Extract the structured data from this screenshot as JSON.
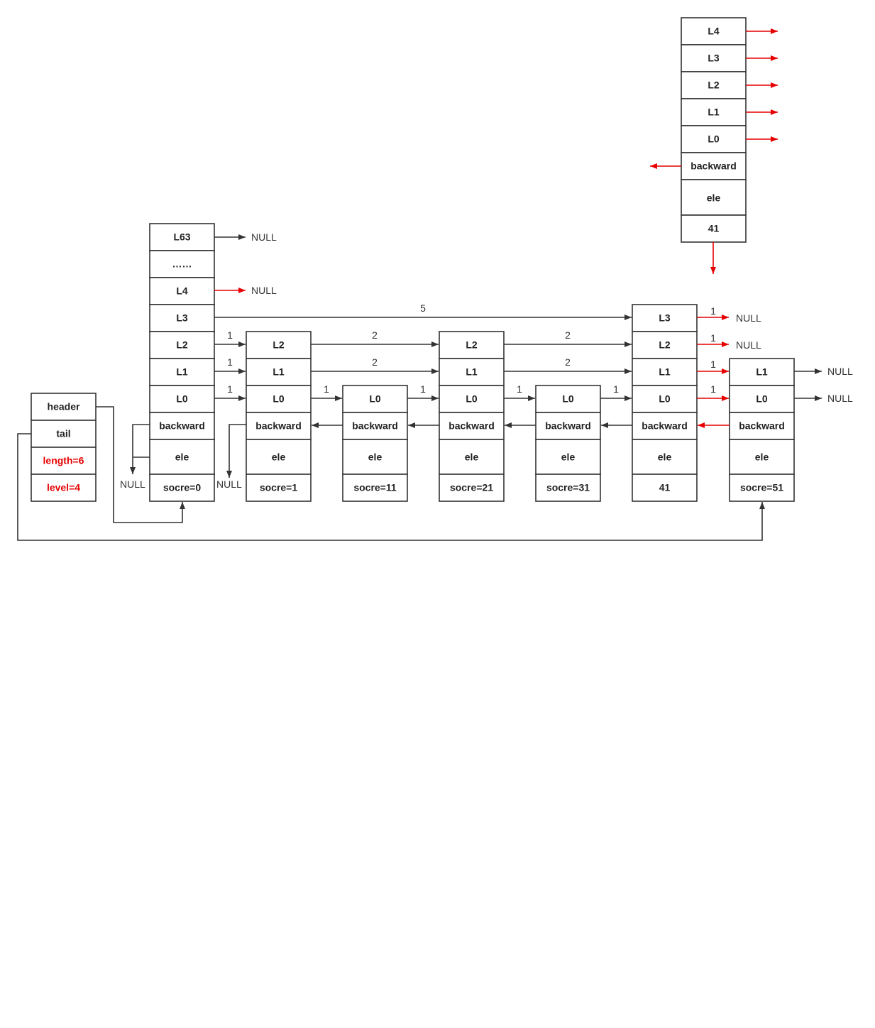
{
  "zsl": {
    "header": "header",
    "tail": "tail",
    "length": "length=6",
    "level": "level=4"
  },
  "nodes": {
    "header": {
      "levels": [
        "L63",
        "……",
        "L4",
        "L3",
        "L2",
        "L1",
        "L0"
      ],
      "backward": "backward",
      "ele": "ele",
      "score": "socre=0"
    },
    "n1": {
      "levels": [
        "L2",
        "L1",
        "L0"
      ],
      "backward": "backward",
      "ele": "ele",
      "score": "socre=1"
    },
    "n2": {
      "levels": [
        "L0"
      ],
      "backward": "backward",
      "ele": "ele",
      "score": "socre=11"
    },
    "n3": {
      "levels": [
        "L2",
        "L1",
        "L0"
      ],
      "backward": "backward",
      "ele": "ele",
      "score": "socre=21"
    },
    "n4": {
      "levels": [
        "L0"
      ],
      "backward": "backward",
      "ele": "ele",
      "score": "socre=31"
    },
    "n5": {
      "levels": [
        "L3",
        "L2",
        "L1",
        "L0"
      ],
      "backward": "backward",
      "ele": "ele",
      "score": "41"
    },
    "n6": {
      "levels": [
        "L1",
        "L0"
      ],
      "backward": "backward",
      "ele": "ele",
      "score": "socre=51"
    },
    "new": {
      "levels": [
        "L4",
        "L3",
        "L2",
        "L1",
        "L0"
      ],
      "backward": "backward",
      "ele": "ele",
      "score": "41"
    }
  },
  "null_label": "NULL",
  "spans": {
    "header_L3": "5",
    "header_L2": "1",
    "header_L1": "1",
    "header_L0": "1",
    "n1_L2": "2",
    "n1_L1": "2",
    "n1_L0": "1",
    "n2_L0": "1",
    "n3_L2": "2",
    "n3_L1": "2",
    "n3_L0": "1",
    "n4_L0": "1",
    "n5_L3": "1",
    "n5_L2": "1",
    "n5_L1": "1",
    "n5_L0": "1"
  },
  "colors": {
    "line": "#333333",
    "highlight": "#e60000"
  }
}
